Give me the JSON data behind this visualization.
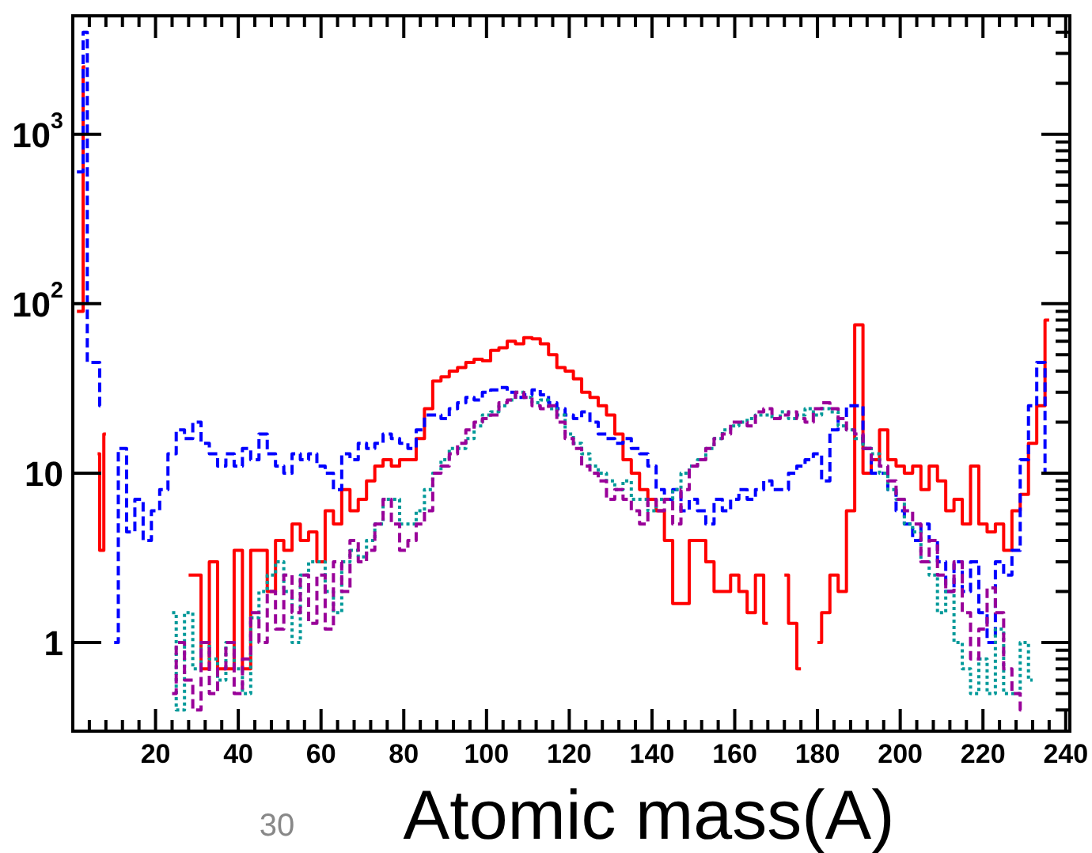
{
  "chart_data": {
    "type": "step",
    "xlabel": "Atomic mass(A)",
    "annotations": [
      "30"
    ],
    "log": "y",
    "xlim": [
      0,
      241
    ],
    "ylim": [
      0.3,
      5000
    ],
    "xticks": [
      {
        "value": 4,
        "label": null
      },
      {
        "value": 8,
        "label": null
      },
      {
        "value": 12,
        "label": null
      },
      {
        "value": 16,
        "label": null
      },
      20,
      {
        "value": 24,
        "label": null
      },
      {
        "value": 28,
        "label": null
      },
      {
        "value": 32,
        "label": null
      },
      {
        "value": 36,
        "label": null
      },
      40,
      {
        "value": 44,
        "label": null
      },
      {
        "value": 48,
        "label": null
      },
      {
        "value": 52,
        "label": null
      },
      {
        "value": 56,
        "label": null
      },
      60,
      {
        "value": 64,
        "label": null
      },
      {
        "value": 68,
        "label": null
      },
      {
        "value": 72,
        "label": null
      },
      {
        "value": 76,
        "label": null
      },
      80,
      {
        "value": 84,
        "label": null
      },
      {
        "value": 88,
        "label": null
      },
      {
        "value": 92,
        "label": null
      },
      {
        "value": 96,
        "label": null
      },
      100,
      {
        "value": 104,
        "label": null
      },
      {
        "value": 108,
        "label": null
      },
      {
        "value": 112,
        "label": null
      },
      {
        "value": 116,
        "label": null
      },
      120,
      {
        "value": 124,
        "label": null
      },
      {
        "value": 128,
        "label": null
      },
      {
        "value": 132,
        "label": null
      },
      {
        "value": 136,
        "label": null
      },
      140,
      {
        "value": 144,
        "label": null
      },
      {
        "value": 148,
        "label": null
      },
      {
        "value": 152,
        "label": null
      },
      {
        "value": 156,
        "label": null
      },
      160,
      {
        "value": 164,
        "label": null
      },
      {
        "value": 168,
        "label": null
      },
      {
        "value": 172,
        "label": null
      },
      {
        "value": 176,
        "label": null
      },
      180,
      {
        "value": 184,
        "label": null
      },
      {
        "value": 188,
        "label": null
      },
      {
        "value": 192,
        "label": null
      },
      {
        "value": 196,
        "label": null
      },
      200,
      {
        "value": 204,
        "label": null
      },
      {
        "value": 208,
        "label": null
      },
      {
        "value": 212,
        "label": null
      },
      {
        "value": 216,
        "label": null
      },
      220,
      {
        "value": 224,
        "label": null
      },
      {
        "value": 228,
        "label": null
      },
      {
        "value": 232,
        "label": null
      },
      {
        "value": 236,
        "label": null
      },
      240
    ],
    "yticks": [
      1,
      10,
      {
        "value": 100,
        "label": "10$^{2}$"
      },
      {
        "value": 1000,
        "label": "10$^{3}$"
      }
    ],
    "series": [
      {
        "color": "#ff0000",
        "line_style": "solid",
        "x": [
          1,
          2,
          3,
          4,
          5,
          6,
          7,
          8,
          9,
          26,
          28,
          30,
          32,
          34,
          36,
          38,
          40,
          42,
          44,
          46,
          48,
          50,
          52,
          54,
          56,
          58,
          60,
          62,
          64,
          66,
          68,
          70,
          72,
          74,
          76,
          78,
          80,
          82,
          84,
          86,
          88,
          90,
          92,
          94,
          96,
          98,
          100,
          102,
          104,
          106,
          108,
          110,
          112,
          114,
          116,
          118,
          120,
          122,
          124,
          126,
          128,
          130,
          132,
          134,
          136,
          138,
          140,
          142,
          144,
          146,
          148,
          150,
          152,
          154,
          156,
          158,
          160,
          162,
          164,
          166,
          168,
          170,
          172,
          174,
          176,
          178,
          180,
          182,
          184,
          186,
          188,
          190,
          192,
          194,
          196,
          198,
          200,
          202,
          204,
          206,
          208,
          210,
          212,
          214,
          216,
          218,
          220,
          222,
          224,
          226,
          228,
          230,
          232,
          234,
          236
        ],
        "values": [
          90,
          90,
          2500,
          null,
          null,
          13,
          3.5,
          17,
          null,
          null,
          2.5,
          2.5,
          0.7,
          3,
          0.7,
          0.7,
          3.5,
          0.7,
          3.5,
          3.5,
          2,
          4,
          3.5,
          5,
          4,
          4.5,
          3,
          6,
          5,
          8,
          6,
          7,
          9,
          11,
          12,
          11,
          12,
          12,
          16,
          24,
          35,
          37,
          40,
          42,
          45,
          47,
          46,
          53,
          55,
          60,
          58,
          63,
          62,
          58,
          50,
          42,
          40,
          36,
          30,
          28,
          25,
          22,
          17,
          12,
          10,
          8,
          7,
          6,
          4,
          1.7,
          1.7,
          4,
          4,
          3,
          2,
          2,
          2.5,
          2,
          1.5,
          2.5,
          1.3,
          null,
          2.5,
          1.3,
          0.7,
          null,
          1,
          1.5,
          2.5,
          2,
          6,
          75,
          10,
          12,
          18,
          12,
          11,
          10,
          11,
          8,
          11,
          9,
          6,
          7,
          5,
          11,
          5,
          4.5,
          5,
          3.5,
          6,
          7.5,
          15,
          25,
          80
        ]
      },
      {
        "color": "#0000ff",
        "line_style": "dashed",
        "x": [
          1,
          2,
          3,
          4,
          5,
          6,
          7,
          8,
          10,
          12,
          14,
          16,
          18,
          20,
          22,
          24,
          26,
          28,
          30,
          32,
          34,
          36,
          38,
          40,
          42,
          44,
          46,
          48,
          50,
          52,
          54,
          56,
          58,
          60,
          62,
          64,
          66,
          68,
          70,
          72,
          74,
          76,
          78,
          80,
          82,
          84,
          86,
          88,
          90,
          92,
          94,
          96,
          98,
          100,
          102,
          104,
          106,
          108,
          110,
          112,
          114,
          116,
          118,
          120,
          122,
          124,
          126,
          128,
          130,
          132,
          134,
          136,
          138,
          140,
          142,
          144,
          146,
          148,
          150,
          152,
          154,
          156,
          158,
          160,
          162,
          164,
          166,
          168,
          170,
          172,
          174,
          176,
          178,
          180,
          182,
          184,
          186,
          188,
          190,
          192,
          194,
          196,
          198,
          200,
          202,
          204,
          206,
          208,
          210,
          212,
          214,
          216,
          218,
          220,
          222,
          224,
          226,
          228,
          230,
          232,
          234,
          236
        ],
        "values": [
          600,
          600,
          4000,
          45,
          45,
          45,
          25,
          null,
          1,
          14,
          4.5,
          7,
          4,
          6,
          8,
          13,
          18,
          16,
          20,
          15,
          13,
          11,
          13,
          11,
          14,
          12,
          17,
          13,
          11,
          10,
          13,
          12,
          13,
          11,
          10,
          8,
          13,
          12,
          15,
          14,
          15,
          17,
          16,
          15,
          14,
          18,
          22,
          22,
          21,
          24,
          26,
          28,
          27,
          30,
          31,
          32,
          30,
          28,
          29,
          31,
          29,
          26,
          24,
          22,
          21,
          23,
          20,
          17,
          16,
          15,
          16,
          14,
          13,
          11,
          8,
          7,
          8,
          6,
          7,
          6,
          5,
          7,
          6,
          7,
          8,
          7,
          8,
          9,
          8,
          8,
          10,
          11,
          12,
          13,
          9,
          18,
          21,
          25,
          25,
          14,
          10,
          10,
          8,
          6,
          5,
          4,
          5,
          4,
          3,
          2,
          3,
          2,
          3,
          1.5,
          1,
          3,
          2.5,
          3.5,
          12,
          25,
          45,
          10
        ]
      },
      {
        "color": "#009999",
        "line_style": "dotted",
        "x": [
          24,
          26,
          28,
          30,
          32,
          34,
          36,
          38,
          40,
          42,
          44,
          46,
          48,
          50,
          52,
          54,
          56,
          58,
          60,
          62,
          64,
          66,
          68,
          70,
          72,
          74,
          76,
          78,
          80,
          82,
          84,
          86,
          88,
          90,
          92,
          94,
          96,
          98,
          100,
          102,
          104,
          106,
          108,
          110,
          112,
          114,
          116,
          118,
          120,
          122,
          124,
          126,
          128,
          130,
          132,
          134,
          136,
          138,
          140,
          142,
          144,
          146,
          148,
          150,
          152,
          154,
          156,
          158,
          160,
          162,
          164,
          166,
          168,
          170,
          172,
          174,
          176,
          178,
          180,
          182,
          184,
          186,
          188,
          190,
          192,
          194,
          196,
          198,
          200,
          202,
          204,
          206,
          208,
          210,
          212,
          214,
          216,
          218,
          220,
          222,
          224,
          226,
          228,
          230,
          232
        ],
        "values": [
          1.5,
          0.4,
          1.5,
          0.7,
          1,
          0.8,
          0.6,
          1,
          0.7,
          0.5,
          1.4,
          2,
          2.5,
          3,
          2,
          1,
          2.5,
          3,
          3,
          2,
          1.5,
          3,
          3.5,
          3.2,
          4,
          5,
          7,
          7,
          5,
          5,
          6,
          8,
          10,
          12,
          14,
          14,
          16,
          19,
          22,
          23,
          25,
          27,
          30,
          28,
          26,
          27,
          24,
          22,
          17,
          15,
          13,
          11,
          10,
          9,
          8,
          9,
          7,
          7,
          6,
          7,
          7,
          8,
          10,
          11,
          12,
          14,
          16,
          18,
          19,
          20,
          21,
          22,
          22,
          21,
          23,
          21,
          22,
          24,
          22,
          24,
          23,
          19,
          18,
          16,
          14,
          13,
          10,
          8,
          7,
          5,
          4.5,
          3,
          2.5,
          1.5,
          2,
          1,
          0.7,
          0.5,
          0.8,
          0.5,
          1.2,
          0.5,
          0.5,
          1,
          0.6
        ]
      },
      {
        "color": "#990099",
        "line_style": "dashed",
        "x": [
          24,
          26,
          28,
          30,
          32,
          34,
          36,
          38,
          40,
          42,
          44,
          46,
          48,
          50,
          52,
          54,
          56,
          58,
          60,
          62,
          64,
          66,
          68,
          70,
          72,
          74,
          76,
          78,
          80,
          82,
          84,
          86,
          88,
          90,
          92,
          94,
          96,
          98,
          100,
          102,
          104,
          106,
          108,
          110,
          112,
          114,
          116,
          118,
          120,
          122,
          124,
          126,
          128,
          130,
          132,
          134,
          136,
          138,
          140,
          142,
          144,
          146,
          148,
          150,
          152,
          154,
          156,
          158,
          160,
          162,
          164,
          166,
          168,
          170,
          172,
          174,
          176,
          178,
          180,
          182,
          184,
          186,
          188,
          190,
          192,
          194,
          196,
          198,
          200,
          202,
          204,
          206,
          208,
          210,
          212,
          214,
          216,
          218,
          220,
          222,
          224,
          226,
          228,
          230
        ],
        "values": [
          0.5,
          1,
          0.6,
          0.4,
          1,
          0.5,
          0.7,
          1,
          0.5,
          0.8,
          1.5,
          1,
          2,
          1.2,
          2.5,
          1.5,
          2.5,
          1.3,
          2.5,
          1.2,
          3,
          2,
          4,
          3,
          3.5,
          5,
          7,
          5,
          3.5,
          4,
          5,
          6,
          10,
          11,
          13,
          15,
          18,
          20,
          21,
          22,
          26,
          27,
          30,
          28,
          25,
          24,
          25,
          20,
          16,
          14,
          11,
          10,
          9,
          7,
          8,
          7,
          6,
          5,
          7,
          6,
          7,
          5,
          8,
          11,
          12,
          14,
          16,
          17,
          20,
          20,
          19,
          23,
          24,
          21,
          22,
          23,
          21,
          20,
          24,
          26,
          24,
          21,
          18,
          17,
          14,
          12,
          11,
          9,
          7,
          6,
          5,
          3,
          4,
          2.5,
          2,
          3,
          1.5,
          0.8,
          1.2,
          2.1,
          1.5,
          0.7,
          0.5,
          0.4
        ]
      }
    ]
  }
}
